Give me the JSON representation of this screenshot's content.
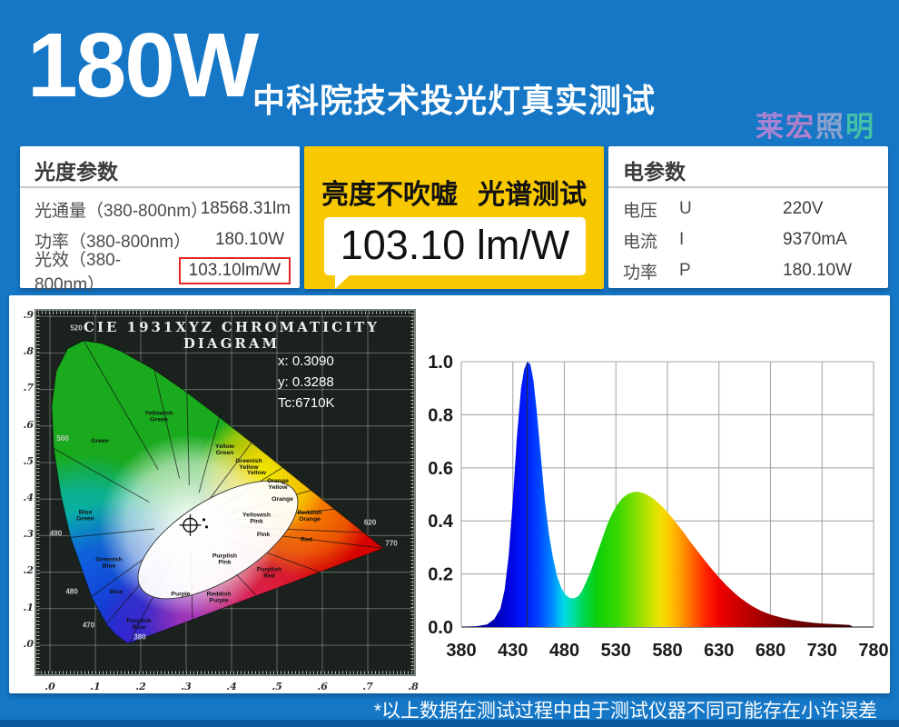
{
  "colors": {
    "page_blue": "#1577c5",
    "bottom_strip_blue": "#0b5a9d",
    "accent_yellow": "#f8c800",
    "highlight_red": "#e62525",
    "cie_bg": "#1b211d",
    "watermark_chars": [
      "#b886d6",
      "#c583cb",
      "#98a7cf",
      "#47c9a5"
    ]
  },
  "banner": {
    "wattage": "180W",
    "subtitle": "中科院技术投光灯真实测试",
    "watermark_chars": [
      "莱",
      "宏",
      "照",
      "明"
    ]
  },
  "photometric": {
    "title": "光度参数",
    "rows": [
      {
        "label": "光通量（380-800nm）",
        "value": "18568.31lm",
        "highlighted": false
      },
      {
        "label": "功率（380-800nm）",
        "value": "180.10W",
        "highlighted": false
      },
      {
        "label": "光效（380-800nm）",
        "value": "103.10lm/W",
        "highlighted": true
      }
    ]
  },
  "callout": {
    "headline_left": "亮度不吹嘘",
    "headline_right": "光谱测试",
    "value": "103.10 lm/W"
  },
  "electrical": {
    "title": "电参数",
    "rows": [
      {
        "name": "电压",
        "symbol": "U",
        "value": "220V"
      },
      {
        "name": "电流",
        "symbol": "I",
        "value": "9370mA"
      },
      {
        "name": "功率",
        "symbol": "P",
        "value": "180.10W"
      }
    ]
  },
  "cie": {
    "title": "CIE 1931XYZ CHROMATICITY DIAGRAM",
    "annotations": [
      "x: 0.3090",
      "y: 0.3288",
      "Tc:6710K"
    ],
    "x_ticks": [
      ".0",
      ".1",
      ".2",
      ".3",
      ".4",
      ".5",
      ".6",
      ".7",
      ".8"
    ],
    "y_ticks": [
      ".9",
      ".8",
      ".7",
      ".6",
      ".5",
      ".4",
      ".3",
      ".2",
      ".1",
      ".0"
    ]
  },
  "footer": {
    "note": "*以上数据在测试过程中由于测试仪器不同可能存在小许误差"
  },
  "chart_data": [
    {
      "type": "area",
      "title": "",
      "xlabel": "",
      "ylabel": "",
      "xlim": [
        380,
        780
      ],
      "ylim": [
        0,
        1.0
      ],
      "grid": true,
      "x_ticks": [
        "380",
        "430",
        "480",
        "530",
        "580",
        "630",
        "680",
        "730",
        "780"
      ],
      "y_ticks": [
        "1.0",
        "0.8",
        "0.6",
        "0.4",
        "0.2",
        "0.0"
      ],
      "peak_wavelength": 445,
      "points": [
        [
          380,
          0
        ],
        [
          395,
          0.003
        ],
        [
          405,
          0.01
        ],
        [
          412,
          0.03
        ],
        [
          418,
          0.07
        ],
        [
          422,
          0.14
        ],
        [
          426,
          0.27
        ],
        [
          430,
          0.48
        ],
        [
          434,
          0.72
        ],
        [
          438,
          0.9
        ],
        [
          441,
          0.97
        ],
        [
          444,
          1.0
        ],
        [
          447,
          0.99
        ],
        [
          450,
          0.93
        ],
        [
          453,
          0.82
        ],
        [
          457,
          0.65
        ],
        [
          461,
          0.48
        ],
        [
          465,
          0.35
        ],
        [
          469,
          0.26
        ],
        [
          473,
          0.19
        ],
        [
          477,
          0.148
        ],
        [
          481,
          0.122
        ],
        [
          485,
          0.11
        ],
        [
          489,
          0.108
        ],
        [
          493,
          0.115
        ],
        [
          497,
          0.135
        ],
        [
          501,
          0.168
        ],
        [
          506,
          0.215
        ],
        [
          511,
          0.27
        ],
        [
          516,
          0.325
        ],
        [
          521,
          0.38
        ],
        [
          526,
          0.425
        ],
        [
          531,
          0.46
        ],
        [
          536,
          0.485
        ],
        [
          541,
          0.5
        ],
        [
          546,
          0.508
        ],
        [
          551,
          0.51
        ],
        [
          556,
          0.505
        ],
        [
          561,
          0.497
        ],
        [
          566,
          0.485
        ],
        [
          571,
          0.468
        ],
        [
          576,
          0.45
        ],
        [
          581,
          0.428
        ],
        [
          586,
          0.405
        ],
        [
          591,
          0.38
        ],
        [
          596,
          0.355
        ],
        [
          601,
          0.328
        ],
        [
          606,
          0.302
        ],
        [
          611,
          0.277
        ],
        [
          616,
          0.252
        ],
        [
          621,
          0.228
        ],
        [
          626,
          0.205
        ],
        [
          631,
          0.183
        ],
        [
          636,
          0.162
        ],
        [
          641,
          0.143
        ],
        [
          646,
          0.125
        ],
        [
          651,
          0.109
        ],
        [
          656,
          0.095
        ],
        [
          661,
          0.082
        ],
        [
          666,
          0.071
        ],
        [
          671,
          0.061
        ],
        [
          676,
          0.053
        ],
        [
          681,
          0.046
        ],
        [
          691,
          0.035
        ],
        [
          701,
          0.027
        ],
        [
          711,
          0.021
        ],
        [
          721,
          0.016
        ],
        [
          731,
          0.013
        ],
        [
          741,
          0.011
        ],
        [
          751,
          0.009
        ],
        [
          757,
          0.008
        ],
        [
          760,
          0
        ]
      ],
      "gradient": [
        [
          0.0,
          "#000080"
        ],
        [
          0.09,
          "#0000b8"
        ],
        [
          0.13,
          "#0008e8"
        ],
        [
          0.16,
          "#0018ff"
        ],
        [
          0.2,
          "#0048ff"
        ],
        [
          0.235,
          "#0090ff"
        ],
        [
          0.26,
          "#00d8e8"
        ],
        [
          0.285,
          "#00e0a8"
        ],
        [
          0.31,
          "#00d855"
        ],
        [
          0.345,
          "#0ad00a"
        ],
        [
          0.4,
          "#3ad800"
        ],
        [
          0.45,
          "#8ae000"
        ],
        [
          0.485,
          "#cce200"
        ],
        [
          0.51,
          "#f0e000"
        ],
        [
          0.535,
          "#ffc400"
        ],
        [
          0.565,
          "#ff9400"
        ],
        [
          0.595,
          "#ff5c00"
        ],
        [
          0.625,
          "#ff2400"
        ],
        [
          0.66,
          "#f00000"
        ],
        [
          0.72,
          "#c40000"
        ],
        [
          0.8,
          "#8c0000"
        ],
        [
          0.9,
          "#600000"
        ],
        [
          1.0,
          "#3c0000"
        ]
      ]
    },
    {
      "type": "scatter",
      "title": "CIE 1931XYZ CHROMATICITY DIAGRAM",
      "xlim": [
        0,
        0.8
      ],
      "ylim": [
        0,
        0.9
      ],
      "points": [
        {
          "x": 0.309,
          "y": 0.3288,
          "label": "measured chromaticity"
        }
      ],
      "cct": "6710K",
      "region_labels": [
        {
          "t": "Green",
          "x": 0.11,
          "y": 0.555
        },
        {
          "t": "Yellowish Green",
          "x": 0.24,
          "y": 0.63
        },
        {
          "t": "Yellow Green",
          "x": 0.385,
          "y": 0.54
        },
        {
          "t": "Greenish Yellow",
          "x": 0.438,
          "y": 0.5
        },
        {
          "t": "Yellow",
          "x": 0.455,
          "y": 0.468
        },
        {
          "t": "Orange Yellow",
          "x": 0.502,
          "y": 0.445
        },
        {
          "t": "Orange",
          "x": 0.512,
          "y": 0.396
        },
        {
          "t": "Reddish Orange",
          "x": 0.572,
          "y": 0.358
        },
        {
          "t": "Red",
          "x": 0.565,
          "y": 0.285
        },
        {
          "t": "Yellowish Pink",
          "x": 0.455,
          "y": 0.352
        },
        {
          "t": "Pink",
          "x": 0.47,
          "y": 0.298
        },
        {
          "t": "Purplish Pink",
          "x": 0.385,
          "y": 0.24
        },
        {
          "t": "Purplish Red",
          "x": 0.483,
          "y": 0.203
        },
        {
          "t": "Reddish Purple",
          "x": 0.372,
          "y": 0.136
        },
        {
          "t": "Purple",
          "x": 0.288,
          "y": 0.136
        },
        {
          "t": "Purplish Blue",
          "x": 0.196,
          "y": 0.062
        },
        {
          "t": "Blue",
          "x": 0.146,
          "y": 0.142
        },
        {
          "t": "Greenish Blue",
          "x": 0.13,
          "y": 0.23
        },
        {
          "t": "Blue Green",
          "x": 0.078,
          "y": 0.36
        }
      ],
      "wavelength_labels": [
        {
          "t": "520",
          "x": 0.058,
          "y": 0.862
        },
        {
          "t": "500",
          "x": 0.028,
          "y": 0.56
        },
        {
          "t": "490",
          "x": 0.013,
          "y": 0.3
        },
        {
          "t": "480",
          "x": 0.048,
          "y": 0.14
        },
        {
          "t": "470",
          "x": 0.085,
          "y": 0.048
        },
        {
          "t": "380",
          "x": 0.198,
          "y": 0.016
        },
        {
          "t": "620",
          "x": 0.705,
          "y": 0.33
        },
        {
          "t": "770",
          "x": 0.752,
          "y": 0.272
        }
      ],
      "boundary_targets": [
        [
          0.0743,
          0.8338
        ],
        [
          0.2296,
          0.7543
        ],
        [
          0.3016,
          0.6923
        ],
        [
          0.3731,
          0.6245
        ],
        [
          0.4441,
          0.5547
        ],
        [
          0.5125,
          0.4866
        ],
        [
          0.5752,
          0.4242
        ],
        [
          0.627,
          0.3725
        ],
        [
          0.6915,
          0.3083
        ],
        [
          0.7347,
          0.2653
        ],
        [
          0.595,
          0.2
        ],
        [
          0.455,
          0.135
        ],
        [
          0.314,
          0.07
        ],
        [
          0.1741,
          0.005
        ],
        [
          0.1241,
          0.0578
        ],
        [
          0.0913,
          0.1327
        ],
        [
          0.0454,
          0.295
        ],
        [
          0.0082,
          0.5384
        ]
      ]
    }
  ]
}
